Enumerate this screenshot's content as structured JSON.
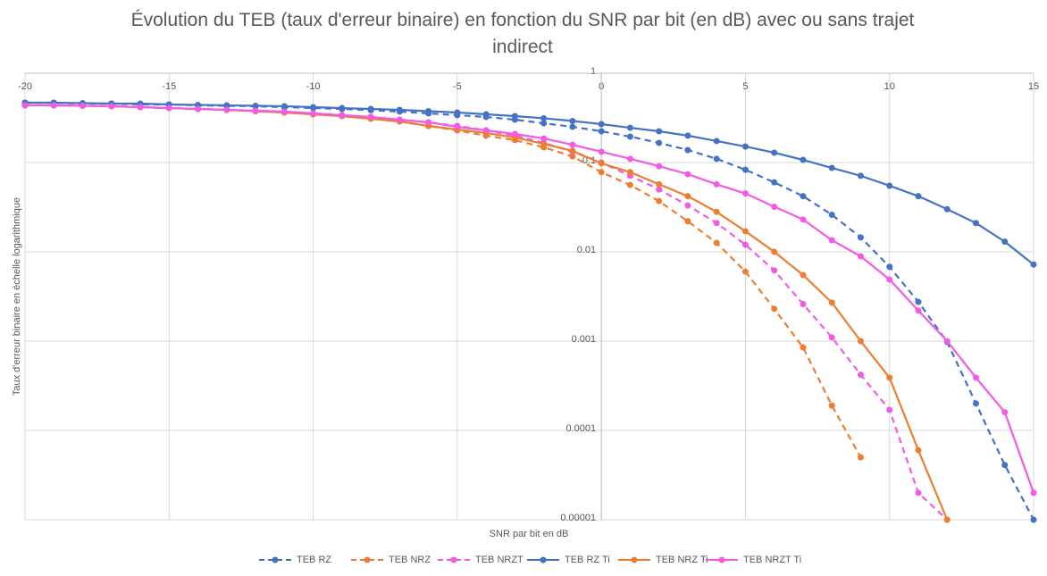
{
  "chart_data": {
    "type": "line",
    "title": "Évolution du TEB (taux d'erreur binaire) en fonction du SNR par bit (en dB) avec ou sans trajet indirect",
    "x_label": "SNR par bit en dB",
    "y_label": "Taux d'erreur binaire en échelle logarithmique",
    "x": [
      -20,
      -19,
      -18,
      -17,
      -16,
      -15,
      -14,
      -13,
      -12,
      -11,
      -10,
      -9,
      -8,
      -7,
      -6,
      -5,
      -4,
      -3,
      -2,
      -1,
      0,
      1,
      2,
      3,
      4,
      5,
      6,
      7,
      8,
      9,
      10,
      11,
      12,
      13,
      14,
      15
    ],
    "xlim": [
      -20,
      15
    ],
    "xticks": [
      -20,
      -15,
      -10,
      -5,
      0,
      5,
      10,
      15
    ],
    "ylim": [
      1e-05,
      1
    ],
    "yticks": [
      1,
      0.1,
      0.01,
      0.001,
      0.0001,
      1e-05
    ],
    "y_scale": "log",
    "grid": true,
    "legend": "bottom",
    "series": [
      {
        "name": "TEB RZ",
        "color": "#4472c4",
        "line_style": "dashed",
        "values": [
          0.468,
          0.468,
          0.457,
          0.457,
          0.447,
          0.447,
          0.437,
          0.432,
          0.427,
          0.417,
          0.407,
          0.398,
          0.385,
          0.372,
          0.355,
          0.339,
          0.324,
          0.302,
          0.275,
          0.251,
          0.224,
          0.195,
          0.166,
          0.138,
          0.11,
          0.083,
          0.06,
          0.042,
          0.026,
          0.0145,
          0.0068,
          0.00275,
          0.00098,
          0.0002,
          4.1e-05,
          1e-05
        ]
      },
      {
        "name": "TEB NRZ",
        "color": "#ed7d31",
        "line_style": "dashed",
        "values": [
          0.437,
          0.437,
          0.432,
          0.427,
          0.417,
          0.407,
          0.398,
          0.389,
          0.376,
          0.363,
          0.347,
          0.331,
          0.309,
          0.288,
          0.257,
          0.229,
          0.2,
          0.178,
          0.148,
          0.117,
          0.078,
          0.056,
          0.037,
          0.022,
          0.0126,
          0.006,
          0.0023,
          0.00085,
          0.00019,
          5e-05,
          null,
          null,
          null,
          null,
          null,
          null
        ]
      },
      {
        "name": "TEB NRZT",
        "color": "#f25be5",
        "line_style": "dashed",
        "values": [
          0.437,
          0.437,
          0.432,
          0.427,
          0.417,
          0.407,
          0.398,
          0.389,
          0.38,
          0.372,
          0.355,
          0.339,
          0.324,
          0.302,
          0.282,
          0.257,
          0.229,
          0.2,
          0.166,
          0.132,
          0.1,
          0.071,
          0.05,
          0.033,
          0.021,
          0.012,
          0.0062,
          0.0026,
          0.0011,
          0.00042,
          0.00017,
          2e-05,
          1e-05,
          null,
          null,
          null
        ]
      },
      {
        "name": "TEB RZ Ti",
        "color": "#4472c4",
        "line_style": "solid",
        "values": [
          0.468,
          0.468,
          0.462,
          0.457,
          0.457,
          0.447,
          0.442,
          0.437,
          0.432,
          0.427,
          0.417,
          0.407,
          0.398,
          0.389,
          0.376,
          0.363,
          0.347,
          0.331,
          0.313,
          0.292,
          0.269,
          0.245,
          0.224,
          0.2,
          0.174,
          0.151,
          0.129,
          0.107,
          0.087,
          0.071,
          0.055,
          0.042,
          0.03,
          0.021,
          0.013,
          0.0072
        ]
      },
      {
        "name": "TEB NRZ Ti",
        "color": "#ed7d31",
        "line_style": "solid",
        "values": [
          0.437,
          0.437,
          0.432,
          0.427,
          0.417,
          0.407,
          0.398,
          0.389,
          0.376,
          0.363,
          0.347,
          0.331,
          0.309,
          0.288,
          0.257,
          0.234,
          0.214,
          0.191,
          0.162,
          0.135,
          0.098,
          0.078,
          0.057,
          0.042,
          0.028,
          0.017,
          0.01,
          0.0055,
          0.0027,
          0.001,
          0.00039,
          6e-05,
          1e-05,
          null,
          null,
          null
        ]
      },
      {
        "name": "TEB NRZT Ti",
        "color": "#f25be5",
        "line_style": "solid",
        "values": [
          0.437,
          0.437,
          0.432,
          0.427,
          0.417,
          0.407,
          0.398,
          0.389,
          0.38,
          0.372,
          0.355,
          0.339,
          0.324,
          0.302,
          0.282,
          0.251,
          0.229,
          0.209,
          0.186,
          0.158,
          0.132,
          0.11,
          0.091,
          0.074,
          0.057,
          0.045,
          0.032,
          0.023,
          0.0135,
          0.0089,
          0.0049,
          0.0022,
          0.001,
          0.00039,
          0.00016,
          2e-05
        ]
      }
    ]
  }
}
